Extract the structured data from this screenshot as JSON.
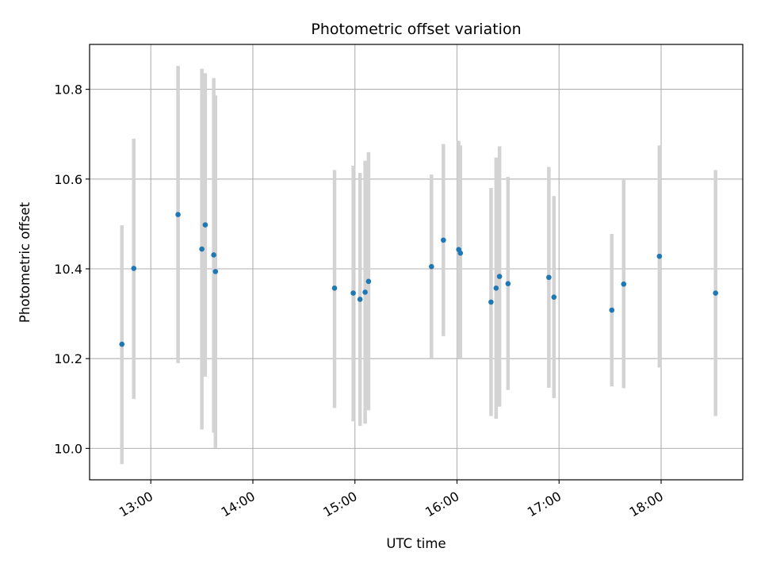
{
  "chart_data": {
    "type": "scatter",
    "title": "Photometric offset variation",
    "xlabel": "UTC time",
    "ylabel": "Photometric offset",
    "x_ticks": [
      "13:00",
      "14:00",
      "15:00",
      "16:00",
      "17:00",
      "18:00"
    ],
    "y_ticks": [
      "10.0",
      "10.2",
      "10.4",
      "10.6",
      "10.8"
    ],
    "xlim": [
      "12:24",
      "18:48"
    ],
    "ylim": [
      9.93,
      10.9
    ],
    "grid": true,
    "colors": {
      "point": "#1f77b4",
      "errorbar": "#d3d3d3",
      "grid": "#b0b0b0"
    },
    "points": [
      {
        "x": "12:43",
        "y": 10.232,
        "lo": 9.965,
        "hi": 10.497
      },
      {
        "x": "12:50",
        "y": 10.401,
        "lo": 10.11,
        "hi": 10.69
      },
      {
        "x": "13:16",
        "y": 10.521,
        "lo": 10.19,
        "hi": 10.852
      },
      {
        "x": "13:30",
        "y": 10.444,
        "lo": 10.042,
        "hi": 10.846
      },
      {
        "x": "13:32",
        "y": 10.498,
        "lo": 10.16,
        "hi": 10.836
      },
      {
        "x": "13:37",
        "y": 10.431,
        "lo": 10.035,
        "hi": 10.825
      },
      {
        "x": "13:38",
        "y": 10.394,
        "lo": 10.001,
        "hi": 10.786
      },
      {
        "x": "14:48",
        "y": 10.357,
        "lo": 10.09,
        "hi": 10.62
      },
      {
        "x": "14:59",
        "y": 10.346,
        "lo": 10.06,
        "hi": 10.63
      },
      {
        "x": "15:03",
        "y": 10.332,
        "lo": 10.05,
        "hi": 10.614
      },
      {
        "x": "15:06",
        "y": 10.348,
        "lo": 10.055,
        "hi": 10.641
      },
      {
        "x": "15:08",
        "y": 10.372,
        "lo": 10.085,
        "hi": 10.66
      },
      {
        "x": "15:45",
        "y": 10.405,
        "lo": 10.2,
        "hi": 10.61
      },
      {
        "x": "15:52",
        "y": 10.464,
        "lo": 10.25,
        "hi": 10.678
      },
      {
        "x": "16:01",
        "y": 10.443,
        "lo": 10.2,
        "hi": 10.685
      },
      {
        "x": "16:02",
        "y": 10.435,
        "lo": 10.2,
        "hi": 10.675
      },
      {
        "x": "16:20",
        "y": 10.326,
        "lo": 10.072,
        "hi": 10.58
      },
      {
        "x": "16:23",
        "y": 10.357,
        "lo": 10.066,
        "hi": 10.648
      },
      {
        "x": "16:25",
        "y": 10.383,
        "lo": 10.093,
        "hi": 10.673
      },
      {
        "x": "16:30",
        "y": 10.367,
        "lo": 10.13,
        "hi": 10.605
      },
      {
        "x": "16:54",
        "y": 10.381,
        "lo": 10.135,
        "hi": 10.627
      },
      {
        "x": "16:57",
        "y": 10.337,
        "lo": 10.112,
        "hi": 10.562
      },
      {
        "x": "17:31",
        "y": 10.308,
        "lo": 10.138,
        "hi": 10.478
      },
      {
        "x": "17:38",
        "y": 10.366,
        "lo": 10.134,
        "hi": 10.598
      },
      {
        "x": "17:59",
        "y": 10.428,
        "lo": 10.18,
        "hi": 10.675
      },
      {
        "x": "18:32",
        "y": 10.346,
        "lo": 10.072,
        "hi": 10.62
      }
    ]
  }
}
